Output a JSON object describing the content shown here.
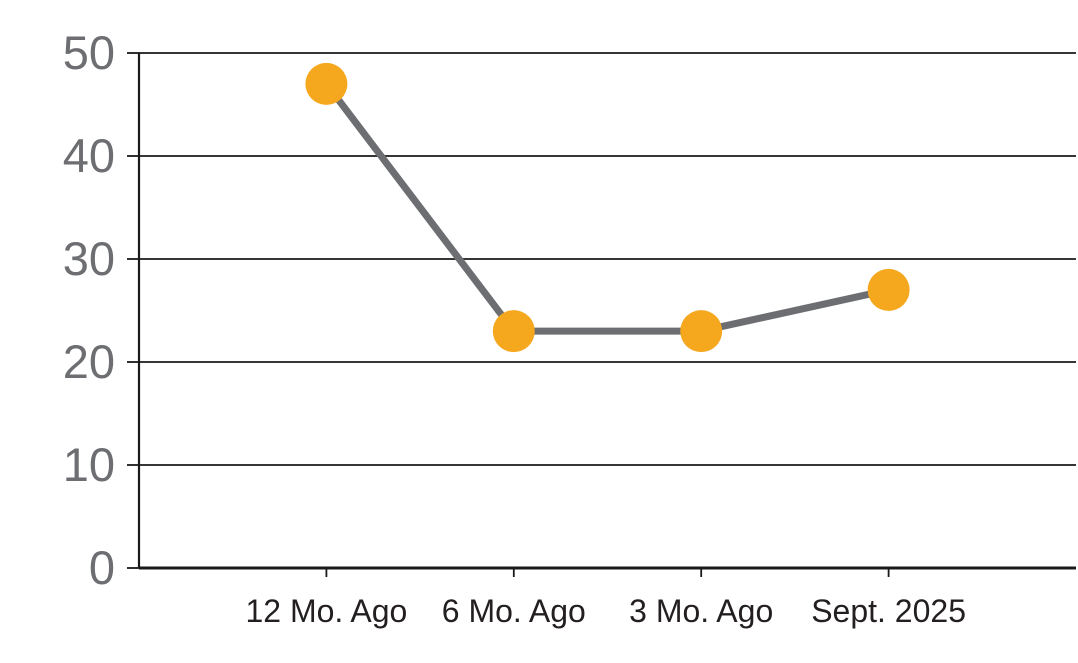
{
  "chart_data": {
    "type": "line",
    "title": "",
    "xlabel": "",
    "ylabel": "",
    "categories": [
      "12 Mo. Ago",
      "6 Mo. Ago",
      "3 Mo. Ago",
      "Sept. 2025"
    ],
    "series": [
      {
        "name": "series-1",
        "values": [
          47,
          23,
          23,
          27
        ],
        "line_color": "#6d6e71",
        "marker_color": "#f5a81e"
      }
    ],
    "ylim": [
      0,
      50
    ],
    "ytick_step": 10,
    "ytick_labels": [
      "0",
      "10",
      "20",
      "30",
      "40",
      "50"
    ],
    "grid": "horizontal",
    "legend_position": "none",
    "colors": {
      "axis": "#1a1a1a",
      "gridline": "#1a1a1a",
      "y_label_text": "#6d6e71",
      "x_label_text": "#231f20",
      "background": "#ffffff"
    }
  }
}
